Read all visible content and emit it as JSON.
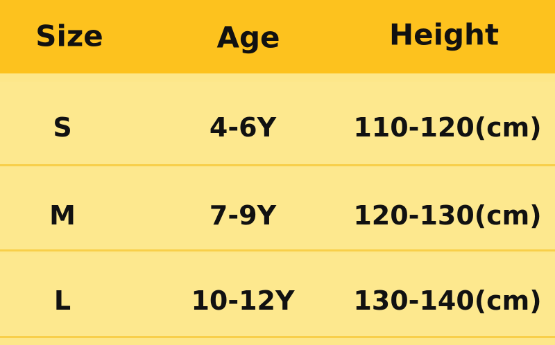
{
  "table": {
    "header": [
      "Size",
      "Age",
      "Height"
    ],
    "rows": [
      [
        "S",
        "4-6Y",
        "110-120(cm)"
      ],
      [
        "M",
        "7-9Y",
        "120-130(cm)"
      ],
      [
        "L",
        "10-12Y",
        "130-140(cm)"
      ]
    ]
  }
}
